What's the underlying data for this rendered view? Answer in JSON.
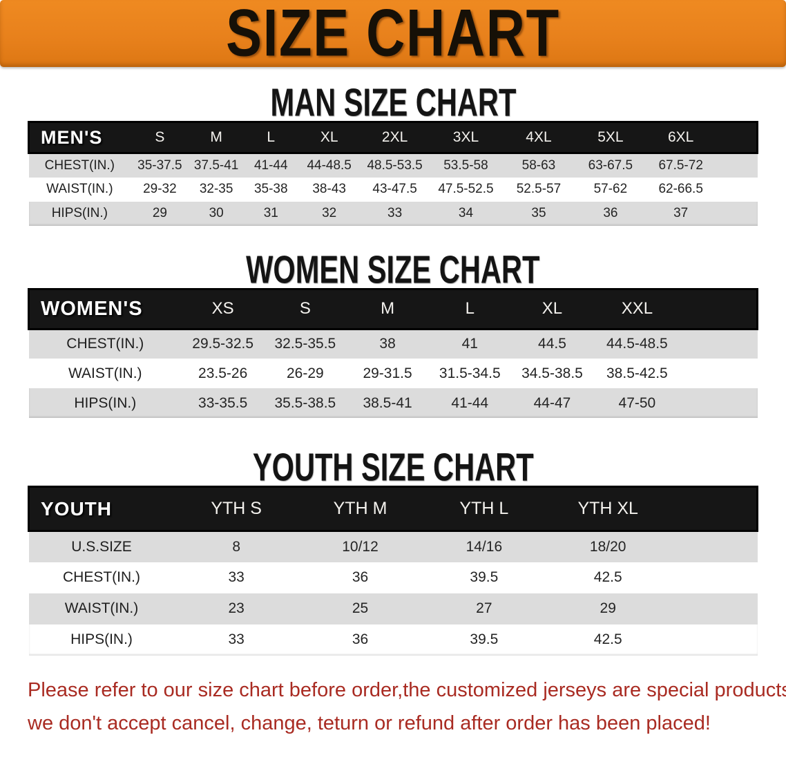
{
  "banner": {
    "title": "SIZE CHART",
    "bg_color": "#E8811C",
    "text_color": "#161007"
  },
  "sections": {
    "men": {
      "title": "MAN SIZE CHART"
    },
    "women": {
      "title": "WOMEN SIZE CHART"
    },
    "youth": {
      "title": "YOUTH SIZE CHART"
    }
  },
  "tables": {
    "men": {
      "group_label": "MEN'S",
      "columns": [
        "S",
        "M",
        "L",
        "XL",
        "2XL",
        "3XL",
        "4XL",
        "5XL",
        "6XL"
      ],
      "rows": [
        {
          "label": "CHEST(IN.)",
          "values": [
            "35-37.5",
            "37.5-41",
            "41-44",
            "44-48.5",
            "48.5-53.5",
            "53.5-58",
            "58-63",
            "63-67.5",
            "67.5-72"
          ]
        },
        {
          "label": "WAIST(IN.)",
          "values": [
            "29-32",
            "32-35",
            "35-38",
            "38-43",
            "43-47.5",
            "47.5-52.5",
            "52.5-57",
            "57-62",
            "62-66.5"
          ]
        },
        {
          "label": "HIPS(IN.)",
          "values": [
            "29",
            "30",
            "31",
            "32",
            "33",
            "34",
            "35",
            "36",
            "37"
          ]
        }
      ]
    },
    "women": {
      "group_label": "WOMEN'S",
      "columns": [
        "XS",
        "S",
        "M",
        "L",
        "XL",
        "XXL"
      ],
      "rows": [
        {
          "label": "CHEST(IN.)",
          "values": [
            "29.5-32.5",
            "32.5-35.5",
            "38",
            "41",
            "44.5",
            "44.5-48.5"
          ]
        },
        {
          "label": "WAIST(IN.)",
          "values": [
            "23.5-26",
            "26-29",
            "29-31.5",
            "31.5-34.5",
            "34.5-38.5",
            "38.5-42.5"
          ]
        },
        {
          "label": "HIPS(IN.)",
          "values": [
            "33-35.5",
            "35.5-38.5",
            "38.5-41",
            "41-44",
            "44-47",
            "47-50"
          ]
        }
      ]
    },
    "youth": {
      "group_label": "YOUTH",
      "columns": [
        "YTH S",
        "YTH M",
        "YTH L",
        "YTH XL"
      ],
      "rows": [
        {
          "label": "U.S.SIZE",
          "values": [
            "8",
            "10/12",
            "14/16",
            "18/20"
          ]
        },
        {
          "label": "CHEST(IN.)",
          "values": [
            "33",
            "36",
            "39.5",
            "42.5"
          ]
        },
        {
          "label": "WAIST(IN.)",
          "values": [
            "23",
            "25",
            "27",
            "29"
          ]
        },
        {
          "label": "HIPS(IN.)",
          "values": [
            "33",
            "36",
            "39.5",
            "42.5"
          ]
        }
      ]
    }
  },
  "footer_note": {
    "color": "#A92B22",
    "lines": [
      "Please refer to our size chart before order,the customized jerseys are special products,",
      "we don't accept cancel, change, teturn or refund after order has been placed!"
    ]
  }
}
